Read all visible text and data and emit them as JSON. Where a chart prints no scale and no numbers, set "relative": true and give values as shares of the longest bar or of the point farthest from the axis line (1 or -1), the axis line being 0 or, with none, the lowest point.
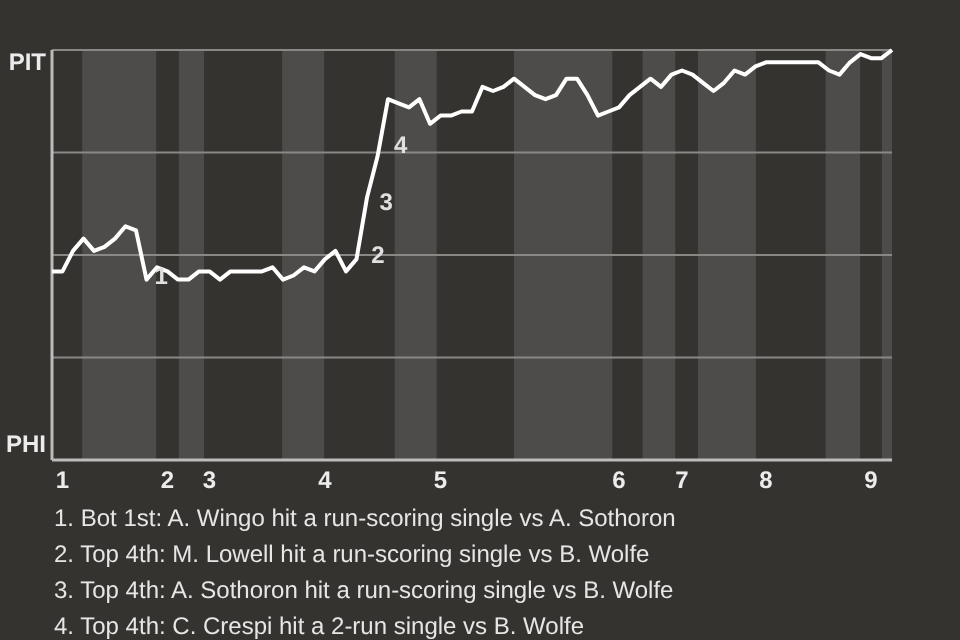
{
  "chart_data": {
    "type": "line",
    "relative": true,
    "categories": [
      null,
      "1",
      null,
      null,
      null,
      null,
      null,
      null,
      null,
      null,
      null,
      "2",
      null,
      null,
      null,
      "3",
      null,
      null,
      null,
      null,
      null,
      null,
      null,
      null,
      null,
      null,
      "4",
      null,
      null,
      null,
      null,
      null,
      null,
      null,
      null,
      null,
      null,
      "5",
      null,
      null,
      null,
      null,
      null,
      null,
      null,
      null,
      null,
      null,
      null,
      null,
      null,
      null,
      null,
      null,
      "6",
      null,
      null,
      null,
      null,
      null,
      "7",
      null,
      null,
      null,
      null,
      null,
      null,
      null,
      "8",
      null,
      null,
      null,
      null,
      null,
      null,
      null,
      null,
      null,
      "9",
      null,
      null
    ],
    "series": [
      {
        "color": "#ffffff",
        "values": [
          0.46,
          0.46,
          0.51,
          0.54,
          0.51,
          0.52,
          0.54,
          0.57,
          0.56,
          0.44,
          0.47,
          0.46,
          0.44,
          0.44,
          0.46,
          0.46,
          0.44,
          0.46,
          0.46,
          0.46,
          0.46,
          0.47,
          0.44,
          0.45,
          0.47,
          0.46,
          0.49,
          0.51,
          0.46,
          0.49,
          0.64,
          0.74,
          0.88,
          0.87,
          0.86,
          0.88,
          0.82,
          0.84,
          0.84,
          0.85,
          0.85,
          0.91,
          0.9,
          0.91,
          0.93,
          0.91,
          0.89,
          0.88,
          0.89,
          0.93,
          0.93,
          0.89,
          0.84,
          0.85,
          0.86,
          0.89,
          0.91,
          0.93,
          0.91,
          0.94,
          0.95,
          0.94,
          0.92,
          0.9,
          0.92,
          0.95,
          0.94,
          0.96,
          0.97,
          0.97,
          0.97,
          0.97,
          0.97,
          0.97,
          0.95,
          0.94,
          0.97,
          0.99,
          0.98,
          0.98,
          1.0
        ]
      }
    ],
    "ref_lines": [
      {
        "axis": "y",
        "value": 0.25,
        "color": "#8a8885"
      },
      {
        "axis": "y",
        "value": 0.5,
        "color": "#8a8885"
      },
      {
        "axis": "y",
        "value": 0.75,
        "color": "#8a8885"
      },
      {
        "axis": "y",
        "value": 1,
        "color": "#8a8885"
      }
    ],
    "annotations": [
      "PIT",
      "PHI",
      "1",
      "2",
      "3",
      "4",
      "1. Bot 1st: A. Wingo hit a run-scoring single vs A. Sothoron",
      "2. Top 4th: M. Lowell hit a run-scoring single vs B. Wolfe",
      "3. Top 4th: A. Sothoron hit a run-scoring single vs B. Wolfe",
      "4. Top 4th: C. Crespi hit a 2-run single vs B. Wolfe"
    ]
  }
}
